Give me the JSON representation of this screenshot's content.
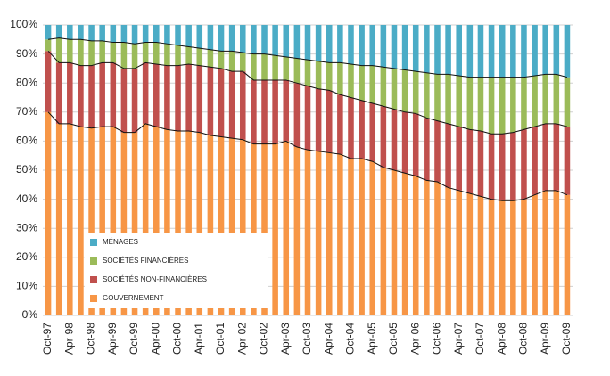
{
  "chart_data": {
    "type": "stacked_bar",
    "categories": [
      "Oct-97",
      null,
      "Apr-98",
      null,
      "Oct-98",
      null,
      "Apr-99",
      null,
      "Oct-99",
      null,
      "Apr-00",
      null,
      "Oct-00",
      null,
      "Apr-01",
      null,
      "Oct-01",
      null,
      "Apr-02",
      null,
      "Oct-02",
      null,
      "Apr-03",
      null,
      "Oct-03",
      null,
      "Apr-04",
      null,
      "Oct-04",
      null,
      "Apr-05",
      null,
      "Oct-05",
      null,
      "Apr-06",
      null,
      "Oct-06",
      null,
      "Apr-07",
      null,
      "Oct-07",
      null,
      "Apr-08",
      null,
      "Oct-08",
      null,
      "Apr-09",
      null,
      "Oct-09"
    ],
    "series": [
      {
        "name": "GOUVERNEMENT",
        "color": "#f79646",
        "values": [
          70,
          66,
          66,
          65,
          64.5,
          65,
          65,
          63,
          63,
          66,
          65,
          64,
          63.5,
          63.5,
          63,
          62,
          61.5,
          61,
          60.5,
          59,
          59,
          59,
          60,
          58,
          57,
          56.5,
          56,
          55.5,
          54,
          54,
          53,
          51,
          50,
          49,
          48,
          46.5,
          46,
          44,
          43,
          42,
          41,
          40,
          39.5,
          39.5,
          40,
          41.5,
          43,
          43,
          41.5
        ]
      },
      {
        "name": "SOCIÉTÉS NON-FINANCIÈRES",
        "color": "#c0504d",
        "values": [
          21,
          21,
          21,
          21,
          21.5,
          22,
          22,
          22,
          22,
          21,
          21.5,
          22,
          22.5,
          23,
          23,
          23.5,
          23.5,
          23,
          23.5,
          22,
          22,
          22,
          21,
          22,
          22,
          21.5,
          21.5,
          20.5,
          21,
          20,
          20,
          21,
          21,
          21,
          21.5,
          21.5,
          21,
          22,
          22,
          22,
          22.5,
          22.5,
          23,
          23.5,
          24,
          23.5,
          23,
          23,
          23.5
        ]
      },
      {
        "name": "SOCIÉTÉS FINANCIÈRES",
        "color": "#9bbb59",
        "values": [
          4,
          8.5,
          8,
          9,
          8.5,
          7.5,
          7,
          9,
          8.5,
          7,
          7.5,
          7.5,
          7,
          6,
          6,
          6,
          6,
          7,
          6.5,
          9,
          9,
          8.5,
          8,
          8.5,
          9,
          9.5,
          9.5,
          11,
          11.5,
          12,
          13,
          13.5,
          14,
          14.5,
          14.5,
          15.5,
          16,
          17,
          17.5,
          18,
          18.5,
          19.5,
          19.5,
          19,
          18,
          17.5,
          17,
          17,
          17
        ]
      },
      {
        "name": "MÉNAGES",
        "color": "#4bacc6",
        "values": [
          5,
          4.5,
          5,
          5,
          5.5,
          5.5,
          6,
          6,
          6.5,
          6,
          6,
          6.5,
          7,
          7.5,
          8,
          8.5,
          9,
          9,
          9.5,
          10,
          10,
          10.5,
          11,
          11.5,
          12,
          12.5,
          13,
          13,
          13.5,
          14,
          14,
          14.5,
          15,
          15.5,
          16,
          16.5,
          17,
          17,
          17.5,
          18,
          18,
          18,
          18,
          18,
          18,
          17.5,
          17,
          17,
          18
        ]
      }
    ],
    "ylim": [
      0,
      100
    ],
    "yticks": [
      {
        "value": 0,
        "label": "0%"
      },
      {
        "value": 10,
        "label": "10%"
      },
      {
        "value": 20,
        "label": "20%"
      },
      {
        "value": 30,
        "label": "30%"
      },
      {
        "value": 40,
        "label": "40%"
      },
      {
        "value": 50,
        "label": "50%"
      },
      {
        "value": 60,
        "label": "60%"
      },
      {
        "value": 70,
        "label": "70%"
      },
      {
        "value": 80,
        "label": "80%"
      },
      {
        "value": 90,
        "label": "90%"
      },
      {
        "value": 100,
        "label": "100%"
      }
    ],
    "grid": true,
    "legend": "lower-left"
  }
}
